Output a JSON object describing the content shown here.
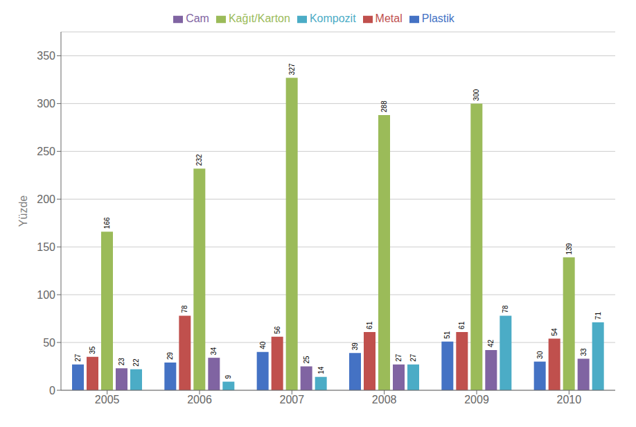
{
  "chart_data": {
    "type": "bar",
    "ylabel": "Yüzde",
    "categories": [
      "2005",
      "2006",
      "2007",
      "2008",
      "2009",
      "2010"
    ],
    "series": [
      {
        "name": "Plastik",
        "color": "#4472C4",
        "values": [
          27,
          29,
          40,
          39,
          51,
          30
        ]
      },
      {
        "name": "Metal",
        "color": "#C0504D",
        "values": [
          35,
          78,
          56,
          61,
          61,
          54
        ]
      },
      {
        "name": "Kağıt/Karton",
        "color": "#9BBB59",
        "values": [
          166,
          232,
          327,
          288,
          300,
          139
        ]
      },
      {
        "name": "Cam",
        "color": "#8064A2",
        "values": [
          23,
          34,
          25,
          27,
          42,
          33
        ]
      },
      {
        "name": "Kompozit",
        "color": "#4BACC6",
        "values": [
          22,
          9,
          14,
          27,
          78,
          71
        ]
      }
    ],
    "ylim": [
      0,
      375
    ],
    "yticks": [
      0,
      50,
      100,
      150,
      200,
      250,
      300,
      350
    ],
    "grid": true,
    "legend": "top",
    "data_labels": true
  }
}
